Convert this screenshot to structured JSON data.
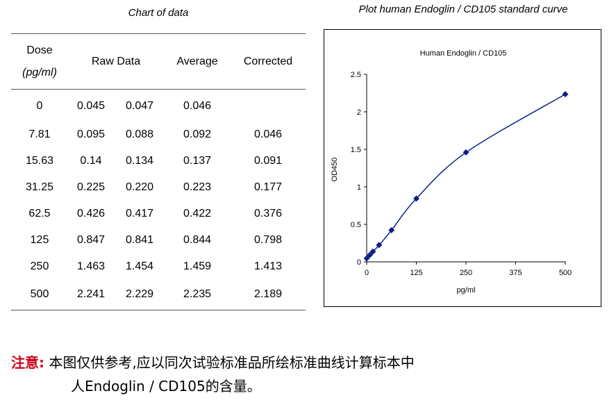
{
  "table": {
    "title": "Chart of data",
    "headers": {
      "dose": "Dose",
      "dose_unit": "(pg/ml)",
      "raw": "Raw Data",
      "average": "Average",
      "corrected": "Corrected"
    },
    "rows": [
      {
        "dose": "0",
        "raw1": "0.045",
        "raw2": "0.047",
        "average": "0.046",
        "corrected": ""
      },
      {
        "dose": "7.81",
        "raw1": "0.095",
        "raw2": "0.088",
        "average": "0.092",
        "corrected": "0.046"
      },
      {
        "dose": "15.63",
        "raw1": "0.14",
        "raw2": "0.134",
        "average": "0.137",
        "corrected": "0.091"
      },
      {
        "dose": "31.25",
        "raw1": "0.225",
        "raw2": "0.220",
        "average": "0.223",
        "corrected": "0.177"
      },
      {
        "dose": "62.5",
        "raw1": "0.426",
        "raw2": "0.417",
        "average": "0.422",
        "corrected": "0.376"
      },
      {
        "dose": "125",
        "raw1": "0.847",
        "raw2": "0.841",
        "average": "0.844",
        "corrected": "0.798"
      },
      {
        "dose": "250",
        "raw1": "1.463",
        "raw2": "1.454",
        "average": "1.459",
        "corrected": "1.413"
      },
      {
        "dose": "500",
        "raw1": "2.241",
        "raw2": "2.229",
        "average": "2.235",
        "corrected": "2.189"
      }
    ]
  },
  "chart_title_caption": "Plot human Endoglin / CD105 standard curve",
  "chart_data": {
    "type": "scatter",
    "title": "Human Endoglin / CD105",
    "xlabel": "pg/ml",
    "ylabel": "OD450",
    "x": [
      0,
      7.81,
      15.63,
      31.25,
      62.5,
      125,
      250,
      500
    ],
    "y": [
      0.046,
      0.092,
      0.137,
      0.223,
      0.422,
      0.844,
      1.459,
      2.235
    ],
    "xlim": [
      0,
      500
    ],
    "ylim": [
      0,
      2.5
    ],
    "xticks": [
      "0",
      "125",
      "250",
      "375",
      "500"
    ],
    "yticks": [
      "0",
      "0.5",
      "1",
      "1.5",
      "2",
      "2.5"
    ],
    "series_color": "#0b1f8a",
    "line": "smooth",
    "grid": false,
    "legend": "none"
  },
  "note": {
    "label": "注意:",
    "text_line1": "本图仅供参考,应以同次试验标准品所绘标准曲线计算标本中",
    "text_line2": "人Endoglin / CD105的含量。"
  }
}
